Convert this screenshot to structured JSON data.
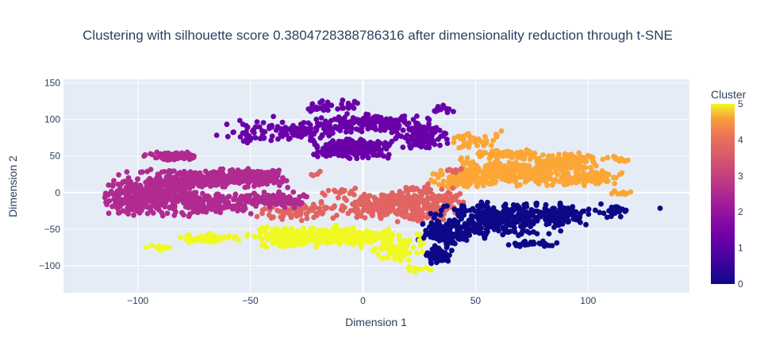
{
  "chart_data": {
    "type": "scatter",
    "title": "Clustering with silhouette score 0.3804728388786316 after dimensionality reduction through t-SNE",
    "xlabel": "Dimension 1",
    "ylabel": "Dimension 2",
    "xlim": [
      -133,
      145
    ],
    "ylim": [
      -137,
      155
    ],
    "xticks": [
      -100,
      -50,
      0,
      50,
      100
    ],
    "yticks": [
      -100,
      -50,
      0,
      50,
      100,
      150
    ],
    "grid": true,
    "colorbar": {
      "title": "Cluster",
      "min": 0,
      "max": 5,
      "ticks": [
        0,
        1,
        2,
        3,
        4,
        5
      ]
    },
    "colors": {
      "plot_background": "#e5ecf6",
      "cluster_0": "#0d0887",
      "cluster_1": "#6a00a8",
      "cluster_2": "#b12a90",
      "cluster_3": "#e16462",
      "cluster_4": "#fca636",
      "cluster_5": "#f0f921"
    },
    "clusters": [
      {
        "cluster": 4,
        "regions": [
          {
            "cx": 65,
            "cy": 28,
            "rx": 28,
            "ry": 18,
            "n": 260
          },
          {
            "cx": 45,
            "cy": 18,
            "rx": 14,
            "ry": 12,
            "n": 120
          },
          {
            "cx": 90,
            "cy": 42,
            "rx": 14,
            "ry": 12,
            "n": 120
          },
          {
            "cx": 100,
            "cy": 20,
            "rx": 14,
            "ry": 10,
            "n": 90
          },
          {
            "cx": 65,
            "cy": 52,
            "rx": 14,
            "ry": 6,
            "n": 60
          },
          {
            "cx": 50,
            "cy": 72,
            "rx": 12,
            "ry": 12,
            "n": 40
          },
          {
            "cx": 112,
            "cy": 46,
            "rx": 6,
            "ry": 4,
            "n": 15
          },
          {
            "cx": 115,
            "cy": 0,
            "rx": 5,
            "ry": 5,
            "n": 12
          }
        ]
      },
      {
        "cluster": 3,
        "regions": [
          {
            "cx": 25,
            "cy": -15,
            "rx": 18,
            "ry": 25,
            "n": 260
          },
          {
            "cx": 5,
            "cy": -18,
            "rx": 14,
            "ry": 15,
            "n": 140
          },
          {
            "cx": -25,
            "cy": -25,
            "rx": 22,
            "ry": 12,
            "n": 80
          },
          {
            "cx": -10,
            "cy": 0,
            "rx": 10,
            "ry": 8,
            "n": 15
          },
          {
            "cx": 40,
            "cy": 30,
            "rx": 5,
            "ry": 5,
            "n": 10
          },
          {
            "cx": -20,
            "cy": 25,
            "rx": 4,
            "ry": 4,
            "n": 5
          }
        ]
      },
      {
        "cluster": 0,
        "regions": [
          {
            "cx": 60,
            "cy": -35,
            "rx": 28,
            "ry": 22,
            "n": 320
          },
          {
            "cx": 40,
            "cy": -55,
            "rx": 15,
            "ry": 15,
            "n": 120
          },
          {
            "cx": 88,
            "cy": -30,
            "rx": 12,
            "ry": 15,
            "n": 120
          },
          {
            "cx": 33,
            "cy": -85,
            "rx": 6,
            "ry": 12,
            "n": 50
          },
          {
            "cx": 110,
            "cy": -25,
            "rx": 8,
            "ry": 12,
            "n": 30
          },
          {
            "cx": 75,
            "cy": -70,
            "rx": 14,
            "ry": 4,
            "n": 30
          },
          {
            "cx": 132,
            "cy": -21,
            "rx": 1,
            "ry": 1,
            "n": 1
          }
        ]
      },
      {
        "cluster": 1,
        "regions": [
          {
            "cx": -5,
            "cy": 60,
            "rx": 16,
            "ry": 12,
            "n": 260
          },
          {
            "cx": 5,
            "cy": 95,
            "rx": 26,
            "ry": 12,
            "n": 160
          },
          {
            "cx": 25,
            "cy": 75,
            "rx": 12,
            "ry": 14,
            "n": 100
          },
          {
            "cx": -25,
            "cy": 85,
            "rx": 20,
            "ry": 14,
            "n": 90
          },
          {
            "cx": -50,
            "cy": 85,
            "rx": 15,
            "ry": 20,
            "n": 40
          },
          {
            "cx": -15,
            "cy": 118,
            "rx": 12,
            "ry": 8,
            "n": 40
          },
          {
            "cx": 35,
            "cy": 115,
            "rx": 6,
            "ry": 6,
            "n": 12
          }
        ]
      },
      {
        "cluster": 2,
        "regions": [
          {
            "cx": -90,
            "cy": 0,
            "rx": 20,
            "ry": 30,
            "n": 350
          },
          {
            "cx": -60,
            "cy": 20,
            "rx": 25,
            "ry": 12,
            "n": 260
          },
          {
            "cx": -65,
            "cy": -15,
            "rx": 20,
            "ry": 14,
            "n": 160
          },
          {
            "cx": -40,
            "cy": -10,
            "rx": 15,
            "ry": 10,
            "n": 120
          },
          {
            "cx": -85,
            "cy": 50,
            "rx": 12,
            "ry": 6,
            "n": 80
          },
          {
            "cx": -105,
            "cy": -8,
            "rx": 10,
            "ry": 20,
            "n": 100
          },
          {
            "cx": -45,
            "cy": 22,
            "rx": 10,
            "ry": 10,
            "n": 50
          }
        ]
      },
      {
        "cluster": 5,
        "regions": [
          {
            "cx": -25,
            "cy": -60,
            "rx": 25,
            "ry": 14,
            "n": 260
          },
          {
            "cx": 0,
            "cy": -60,
            "rx": 15,
            "ry": 10,
            "n": 110
          },
          {
            "cx": 15,
            "cy": -75,
            "rx": 12,
            "ry": 18,
            "n": 80
          },
          {
            "cx": -68,
            "cy": -62,
            "rx": 12,
            "ry": 6,
            "n": 60
          },
          {
            "cx": -90,
            "cy": -75,
            "rx": 6,
            "ry": 4,
            "n": 12
          },
          {
            "cx": 25,
            "cy": -105,
            "rx": 6,
            "ry": 6,
            "n": 12
          }
        ]
      }
    ]
  }
}
